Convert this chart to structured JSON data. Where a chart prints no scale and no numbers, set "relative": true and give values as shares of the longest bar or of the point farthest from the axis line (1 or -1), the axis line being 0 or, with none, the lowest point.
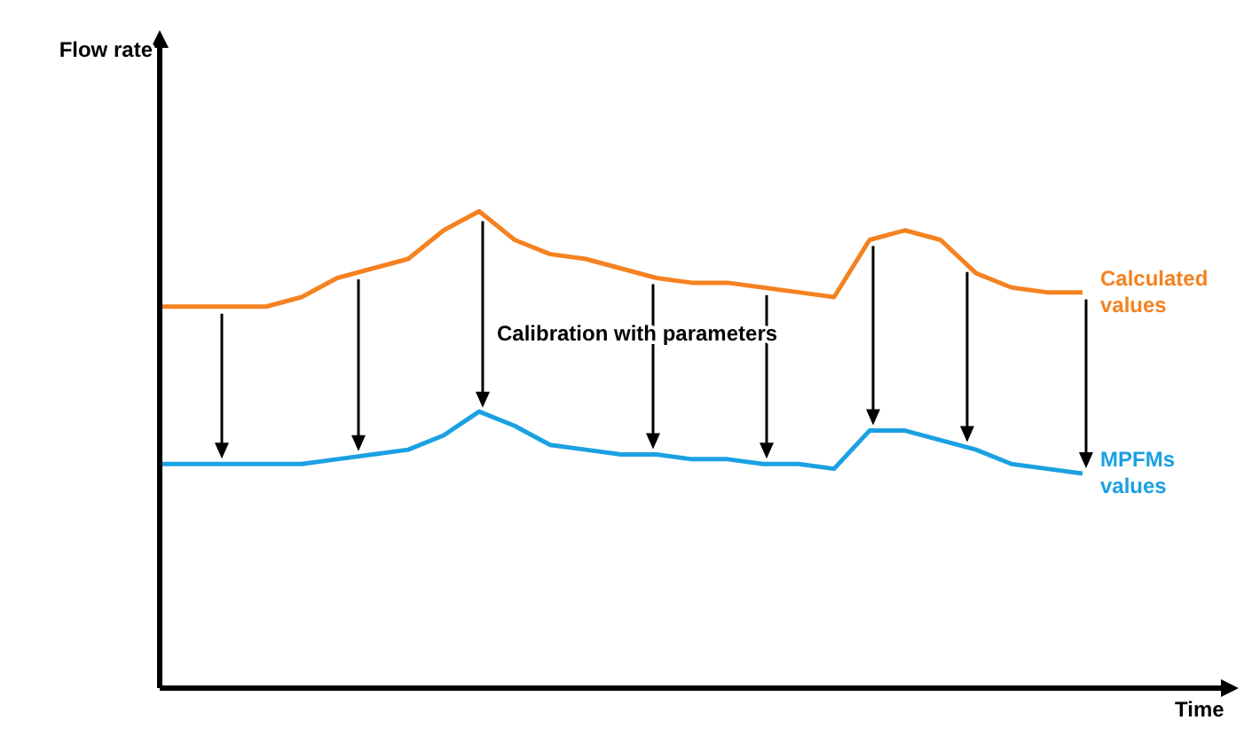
{
  "chart_data": {
    "type": "line",
    "relative": true,
    "xlabel": "Time",
    "annotations": [
      "Flow rate",
      "Calibration with parameters"
    ],
    "legend": false,
    "grid": false,
    "marker": "none",
    "line_style": "solid",
    "tick_labels": false,
    "categories": [
      null,
      null,
      null,
      null,
      null,
      null,
      null,
      null,
      null,
      null,
      null,
      null,
      null,
      null,
      null,
      null,
      null,
      null,
      null,
      null,
      null,
      null,
      null,
      null,
      null,
      null,
      null,
      null,
      null,
      null,
      null
    ],
    "series": [
      {
        "name": "Calculated values",
        "color": "#f58220",
        "values": [
          0.8,
          0.8,
          0.8,
          0.8,
          0.82,
          0.86,
          0.88,
          0.9,
          0.96,
          1.0,
          0.94,
          0.91,
          0.9,
          0.88,
          0.86,
          0.85,
          0.85,
          0.84,
          0.83,
          0.82,
          0.94,
          0.96,
          0.94,
          0.87,
          0.84,
          0.83,
          0.83,
          null,
          null,
          null,
          null
        ]
      },
      {
        "name": "MPFMs values",
        "color": "#1ba1e2",
        "values": [
          0.47,
          0.47,
          0.47,
          0.47,
          0.47,
          0.48,
          0.49,
          0.5,
          0.53,
          0.58,
          0.55,
          0.51,
          0.5,
          0.49,
          0.49,
          0.48,
          0.48,
          0.47,
          0.47,
          0.46,
          0.54,
          0.54,
          0.52,
          0.5,
          0.47,
          0.46,
          0.45,
          null,
          null,
          null,
          null
        ]
      }
    ]
  }
}
